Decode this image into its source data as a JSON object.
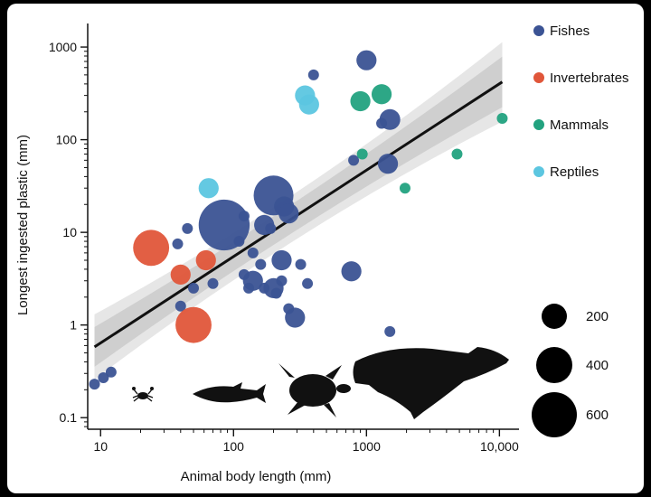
{
  "chart_data": {
    "type": "scatter",
    "xlabel": "Animal body length (mm)",
    "ylabel": "Longest ingested plastic (mm)",
    "xscale": "log",
    "yscale": "log",
    "xlim": [
      8,
      12000
    ],
    "ylim": [
      0.075,
      1500
    ],
    "x_ticks": [
      10,
      100,
      1000,
      10000
    ],
    "x_tick_labels": [
      "10",
      "100",
      "1000",
      "10,000"
    ],
    "y_ticks": [
      0.1,
      1,
      10,
      100,
      1000
    ],
    "y_tick_labels": [
      "0.1",
      "1",
      "10",
      "100",
      "1000"
    ],
    "grid": false,
    "legend_position": "right",
    "fit_line": {
      "x": [
        9,
        10500
      ],
      "y": [
        0.58,
        420
      ]
    },
    "colors": {
      "Fishes": "#3b5394",
      "Invertebrates": "#e0563a",
      "Mammals": "#22a27f",
      "Reptiles": "#5cc6e0"
    },
    "series": [
      {
        "name": "Fishes",
        "points": [
          [
            9,
            0.23,
            8
          ],
          [
            10.5,
            0.27,
            8
          ],
          [
            12,
            0.31,
            8
          ],
          [
            1000,
            720,
            28
          ],
          [
            400,
            500,
            8
          ],
          [
            1300,
            150,
            8
          ],
          [
            1500,
            165,
            30
          ],
          [
            800,
            60,
            8
          ],
          [
            1450,
            55,
            28
          ],
          [
            85,
            12,
            180
          ],
          [
            200,
            25,
            110
          ],
          [
            45,
            11,
            8
          ],
          [
            120,
            15,
            8
          ],
          [
            170,
            12,
            28
          ],
          [
            240,
            19,
            28
          ],
          [
            260,
            16,
            28
          ],
          [
            190,
            11,
            8
          ],
          [
            110,
            8,
            8
          ],
          [
            38,
            7.5,
            8
          ],
          [
            140,
            6,
            8
          ],
          [
            230,
            5,
            28
          ],
          [
            160,
            4.5,
            8
          ],
          [
            120,
            3.5,
            8
          ],
          [
            140,
            3,
            28
          ],
          [
            130,
            2.5,
            8
          ],
          [
            170,
            2.5,
            8
          ],
          [
            200,
            2.5,
            28
          ],
          [
            230,
            3,
            8
          ],
          [
            210,
            2.2,
            8
          ],
          [
            360,
            2.8,
            8
          ],
          [
            320,
            4.5,
            8
          ],
          [
            70,
            2.8,
            8
          ],
          [
            50,
            2.5,
            8
          ],
          [
            40,
            1.6,
            8
          ],
          [
            260,
            1.5,
            8
          ],
          [
            290,
            1.2,
            28
          ],
          [
            770,
            3.8,
            28
          ],
          [
            1500,
            0.85,
            8
          ]
        ]
      },
      {
        "name": "Invertebrates",
        "points": [
          [
            24,
            6.8,
            90
          ],
          [
            40,
            3.5,
            28
          ],
          [
            62,
            5,
            28
          ],
          [
            50,
            1,
            90
          ]
        ]
      },
      {
        "name": "Mammals",
        "points": [
          [
            900,
            260,
            28
          ],
          [
            1300,
            310,
            28
          ],
          [
            10500,
            170,
            8
          ],
          [
            930,
            70,
            8
          ],
          [
            4800,
            70,
            8
          ],
          [
            1950,
            30,
            8
          ]
        ]
      },
      {
        "name": "Reptiles",
        "points": [
          [
            345,
            300,
            28
          ],
          [
            370,
            240,
            28
          ],
          [
            65,
            30,
            28
          ]
        ]
      }
    ],
    "size_legend": [
      {
        "label": "200",
        "value": 200
      },
      {
        "label": "400",
        "value": 400
      },
      {
        "label": "600",
        "value": 600
      }
    ],
    "silhouettes": [
      "crab",
      "fish",
      "turtle",
      "whale"
    ]
  }
}
